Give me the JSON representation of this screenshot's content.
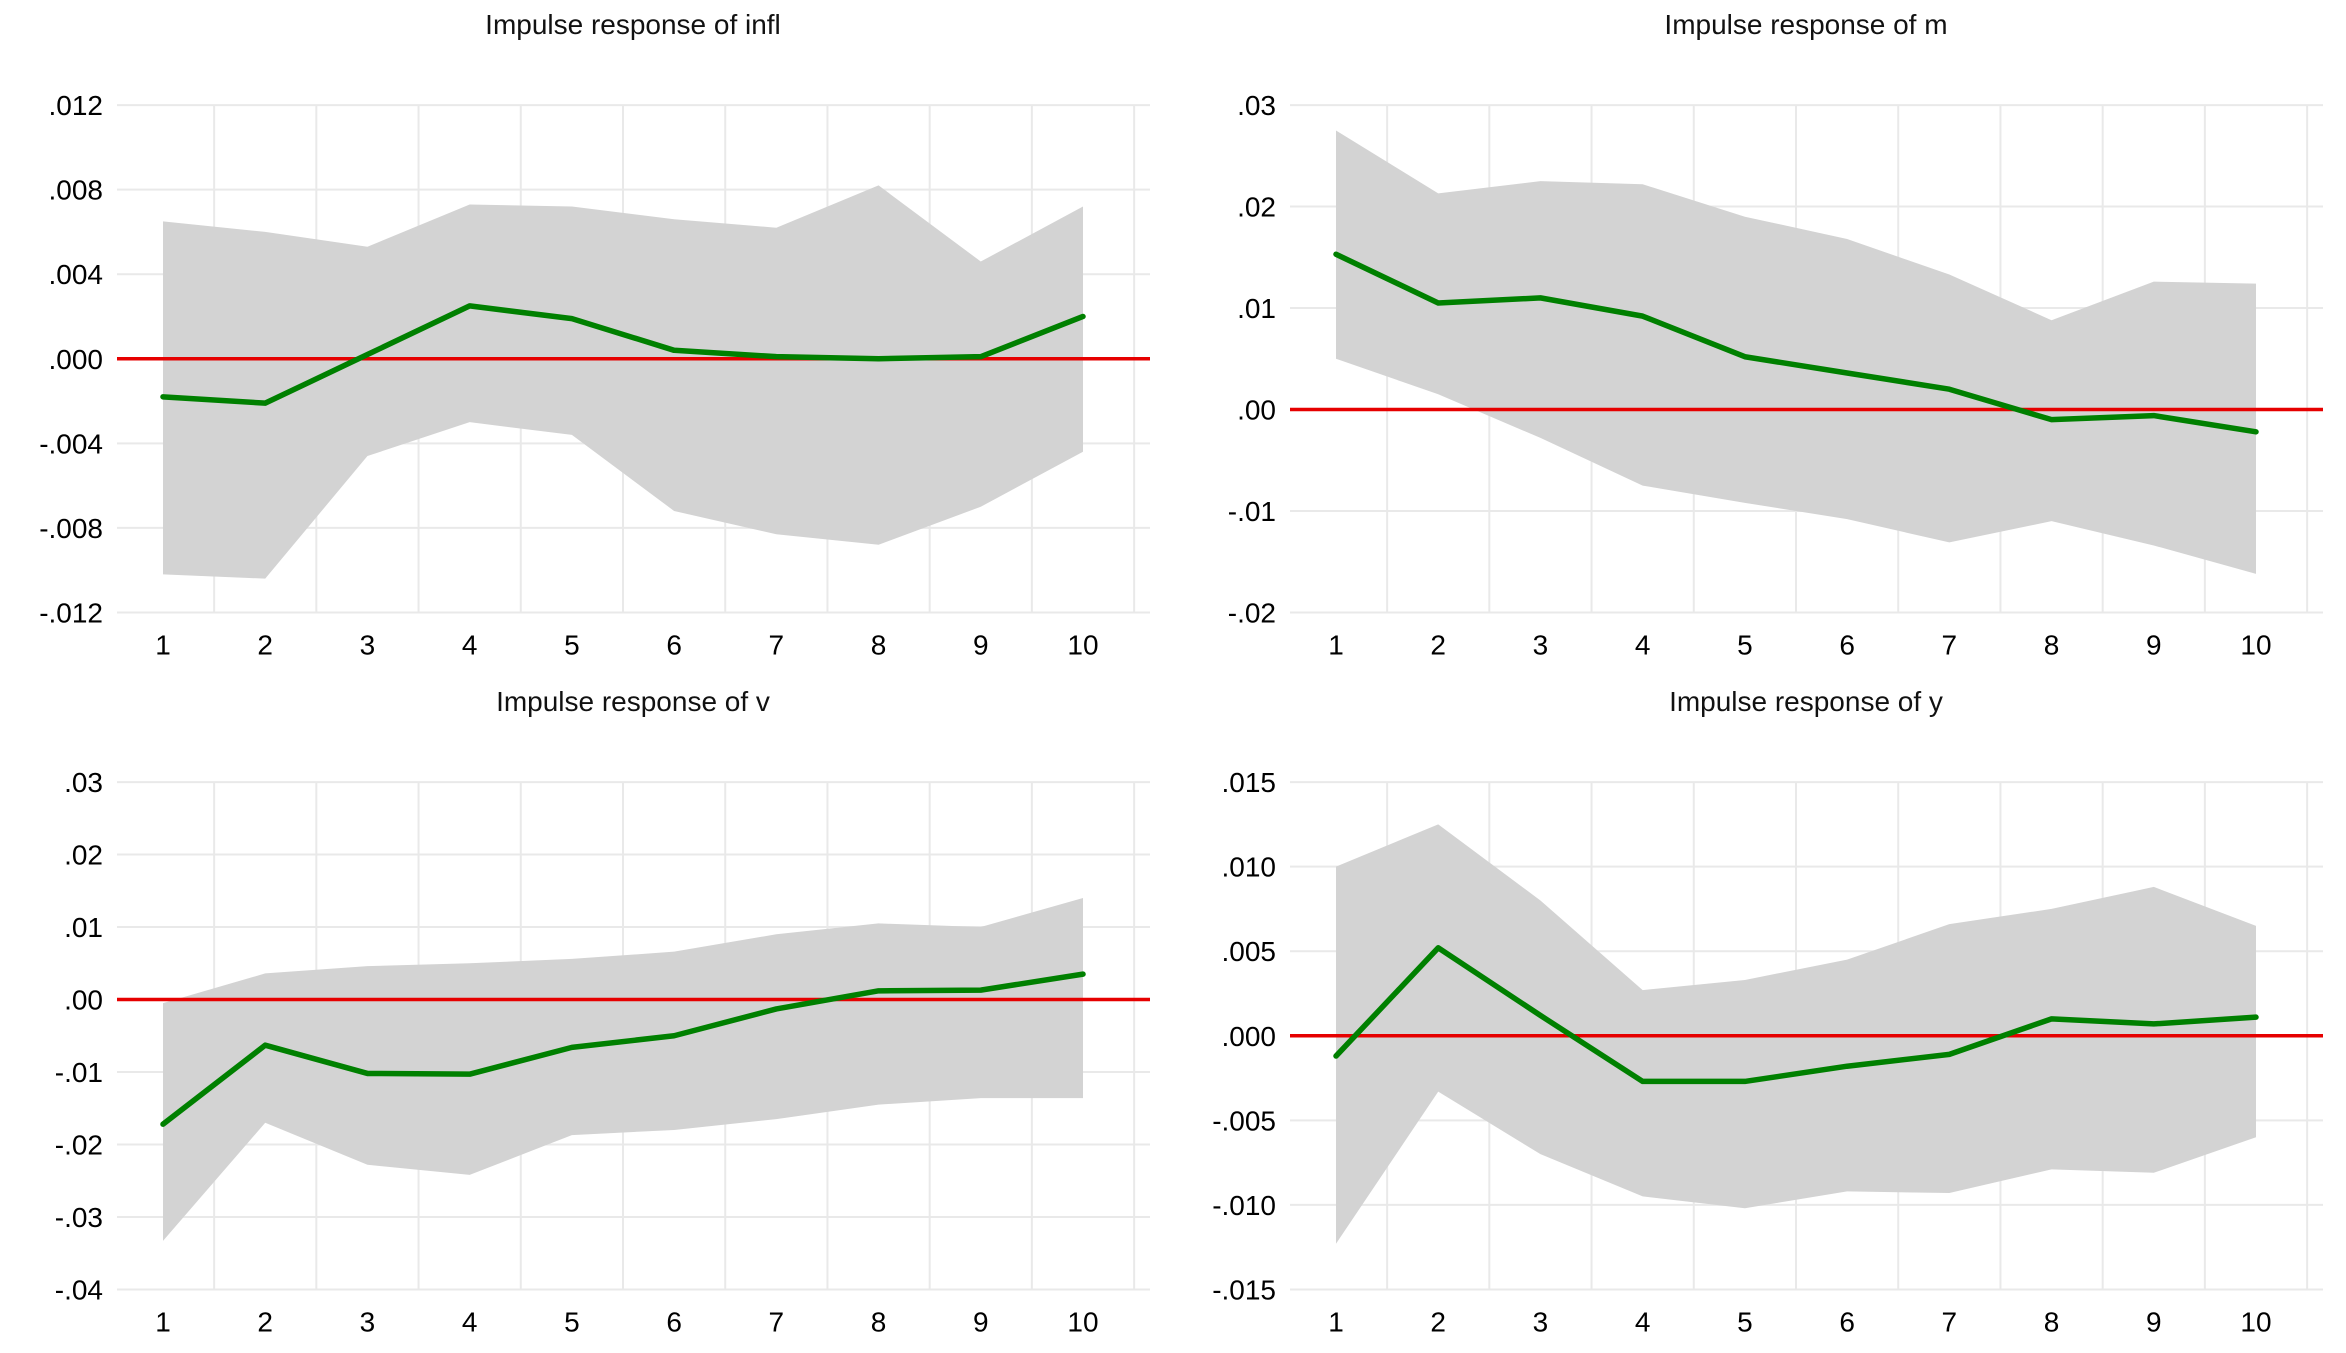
{
  "page": {
    "background": "#ffffff",
    "kind": "Stata-style impulse response function panel (2x2 grid)"
  },
  "colors": {
    "irf_line": "#008000",
    "zero_line": "#e60000",
    "confidence_band": "#d3d3d3",
    "gridline": "#e9e9e9",
    "text": "#000000"
  },
  "chart_data": [
    {
      "type": "area",
      "title": "Impulse response of infl",
      "x": [
        1,
        2,
        3,
        4,
        5,
        6,
        7,
        8,
        9,
        10
      ],
      "xtick_labels": [
        "1",
        "2",
        "3",
        "4",
        "5",
        "6",
        "7",
        "8",
        "9",
        "10"
      ],
      "series": [
        {
          "name": "irf",
          "values": [
            -0.0018,
            -0.0021,
            0.0002,
            0.0025,
            0.0019,
            0.0004,
            0.0001,
            0.0,
            0.0001,
            0.002
          ]
        },
        {
          "name": "ci_upper",
          "values": [
            0.0065,
            0.006,
            0.0053,
            0.0073,
            0.0072,
            0.0066,
            0.0062,
            0.0082,
            0.0046,
            0.0072
          ]
        },
        {
          "name": "ci_lower",
          "values": [
            -0.0102,
            -0.0104,
            -0.0046,
            -0.003,
            -0.0036,
            -0.0072,
            -0.0083,
            -0.0088,
            -0.007,
            -0.0044
          ]
        }
      ],
      "zero_line": 0,
      "yticks": [
        0.012,
        0.008,
        0.004,
        0.0,
        -0.004,
        -0.008,
        -0.012
      ],
      "ytick_labels": [
        ".012",
        ".008",
        ".004",
        ".000",
        "-.004",
        "-.008",
        "-.012"
      ],
      "ylim": [
        -0.012,
        0.012
      ],
      "xlim": [
        0.5,
        10.5
      ],
      "grid": true,
      "legend": "none"
    },
    {
      "type": "area",
      "title": "Impulse response of m",
      "x": [
        1,
        2,
        3,
        4,
        5,
        6,
        7,
        8,
        9,
        10
      ],
      "xtick_labels": [
        "1",
        "2",
        "3",
        "4",
        "5",
        "6",
        "7",
        "8",
        "9",
        "10"
      ],
      "series": [
        {
          "name": "irf",
          "values": [
            0.0153,
            0.0105,
            0.011,
            0.0092,
            0.0052,
            0.0036,
            0.002,
            -0.001,
            -0.0006,
            -0.0022
          ]
        },
        {
          "name": "ci_upper",
          "values": [
            0.0275,
            0.0213,
            0.0225,
            0.0222,
            0.019,
            0.0168,
            0.0133,
            0.0088,
            0.0126,
            0.0124
          ]
        },
        {
          "name": "ci_lower",
          "values": [
            0.005,
            0.0015,
            -0.0028,
            -0.0075,
            -0.0092,
            -0.0108,
            -0.0131,
            -0.011,
            -0.0134,
            -0.0162
          ]
        }
      ],
      "zero_line": 0,
      "yticks": [
        0.03,
        0.02,
        0.01,
        0.0,
        -0.01,
        -0.02
      ],
      "ytick_labels": [
        ".03",
        ".02",
        ".01",
        ".00",
        "-.01",
        "-.02"
      ],
      "ylim": [
        -0.02,
        0.03
      ],
      "xlim": [
        0.5,
        10.5
      ],
      "grid": true,
      "legend": "none"
    },
    {
      "type": "area",
      "title": "Impulse response of v",
      "x": [
        1,
        2,
        3,
        4,
        5,
        6,
        7,
        8,
        9,
        10
      ],
      "xtick_labels": [
        "1",
        "2",
        "3",
        "4",
        "5",
        "6",
        "7",
        "8",
        "9",
        "10"
      ],
      "series": [
        {
          "name": "irf",
          "values": [
            -0.0172,
            -0.0063,
            -0.0102,
            -0.0103,
            -0.0066,
            -0.005,
            -0.0013,
            0.0012,
            0.0013,
            0.0035
          ]
        },
        {
          "name": "ci_upper",
          "values": [
            -0.0005,
            0.0036,
            0.0046,
            0.005,
            0.0056,
            0.0066,
            0.009,
            0.0105,
            0.01,
            0.014
          ]
        },
        {
          "name": "ci_lower",
          "values": [
            -0.0333,
            -0.017,
            -0.0228,
            -0.0242,
            -0.0187,
            -0.018,
            -0.0165,
            -0.0145,
            -0.0136,
            -0.0136
          ]
        }
      ],
      "zero_line": 0,
      "yticks": [
        0.03,
        0.02,
        0.01,
        0.0,
        -0.01,
        -0.02,
        -0.03,
        -0.04
      ],
      "ytick_labels": [
        ".03",
        ".02",
        ".01",
        ".00",
        "-.01",
        "-.02",
        "-.03",
        "-.04"
      ],
      "ylim": [
        -0.04,
        0.03
      ],
      "xlim": [
        0.5,
        10.5
      ],
      "grid": true,
      "legend": "none"
    },
    {
      "type": "area",
      "title": "Impulse response of y",
      "x": [
        1,
        2,
        3,
        4,
        5,
        6,
        7,
        8,
        9,
        10
      ],
      "xtick_labels": [
        "1",
        "2",
        "3",
        "4",
        "5",
        "6",
        "7",
        "8",
        "9",
        "10"
      ],
      "series": [
        {
          "name": "irf",
          "values": [
            -0.0012,
            0.0052,
            0.0012,
            -0.0027,
            -0.0027,
            -0.0018,
            -0.0011,
            0.001,
            0.0007,
            0.0011
          ]
        },
        {
          "name": "ci_upper",
          "values": [
            0.01,
            0.0125,
            0.008,
            0.0027,
            0.0033,
            0.0045,
            0.0066,
            0.0075,
            0.0088,
            0.0065
          ]
        },
        {
          "name": "ci_lower",
          "values": [
            -0.0123,
            -0.0033,
            -0.007,
            -0.0095,
            -0.0102,
            -0.0092,
            -0.0093,
            -0.0079,
            -0.0081,
            -0.006
          ]
        }
      ],
      "zero_line": 0,
      "yticks": [
        0.015,
        0.01,
        0.005,
        0.0,
        -0.005,
        -0.01,
        -0.015
      ],
      "ytick_labels": [
        ".015",
        ".010",
        ".005",
        ".000",
        "-.005",
        "-.010",
        "-.015"
      ],
      "ylim": [
        -0.015,
        0.015
      ],
      "xlim": [
        0.5,
        10.5
      ],
      "grid": true,
      "legend": "none"
    }
  ]
}
